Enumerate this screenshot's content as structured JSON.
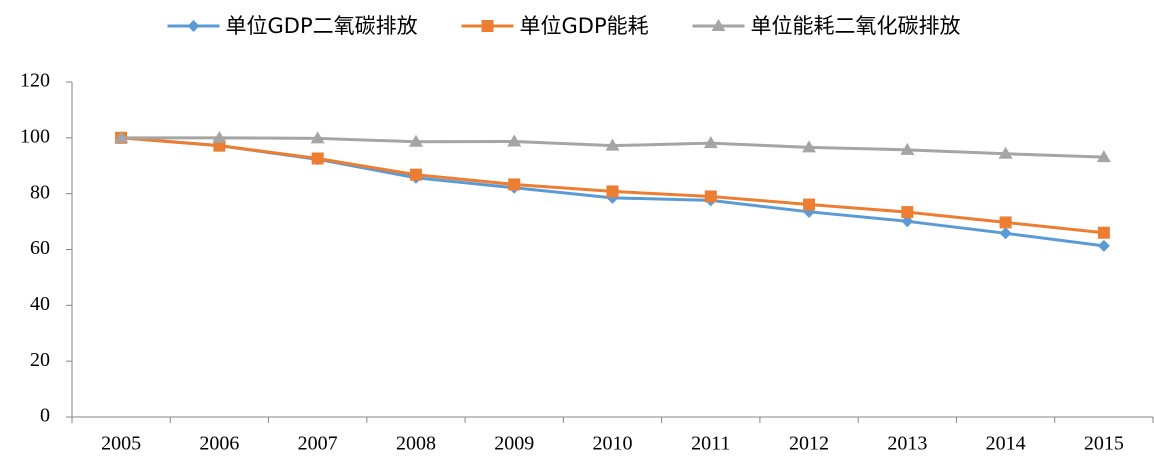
{
  "chart_data": {
    "type": "line",
    "categories": [
      "2005",
      "2006",
      "2007",
      "2008",
      "2009",
      "2010",
      "2011",
      "2012",
      "2013",
      "2014",
      "2015"
    ],
    "series": [
      {
        "name": "单位GDP二氧碳排放",
        "color": "#5b9bd5",
        "marker": "diamond",
        "values": [
          100,
          97.2,
          92.3,
          85.7,
          82.1,
          78.5,
          77.6,
          73.5,
          70.1,
          65.8,
          61.3
        ]
      },
      {
        "name": "单位GDP能耗",
        "color": "#ed7d31",
        "marker": "square",
        "values": [
          100,
          97.2,
          92.6,
          86.8,
          83.3,
          80.8,
          79.0,
          76.1,
          73.4,
          69.7,
          66.0
        ]
      },
      {
        "name": "单位能耗二氧化碳排放",
        "color": "#a5a5a5",
        "marker": "triangle",
        "values": [
          100,
          100,
          99.8,
          98.6,
          98.7,
          97.2,
          98.1,
          96.6,
          95.7,
          94.3,
          93.1
        ]
      }
    ],
    "ylim": [
      0,
      120
    ],
    "yticks": [
      0,
      20,
      40,
      60,
      80,
      100,
      120
    ],
    "grid": false,
    "legend": "top"
  }
}
